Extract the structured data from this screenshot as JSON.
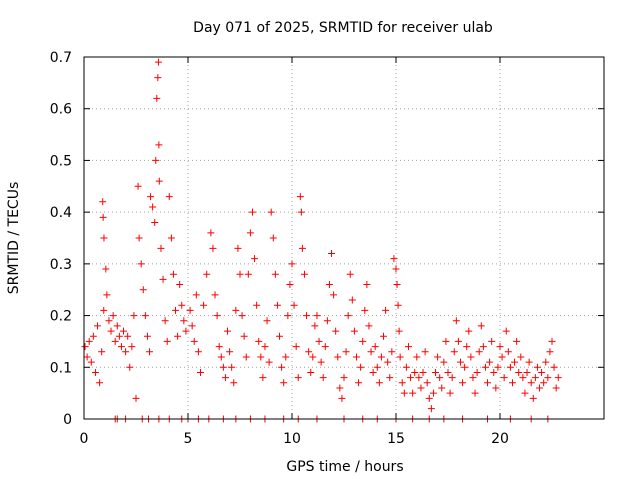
{
  "chart_data": {
    "type": "scatter",
    "title": "Day 071 of 2025, SRMTID for receiver ulab",
    "xlabel": "GPS time / hours",
    "ylabel": "SRMTID / TECUs",
    "xlim": [
      0,
      25
    ],
    "ylim": [
      0,
      0.7
    ],
    "x_ticks": [
      0,
      5,
      10,
      15,
      20
    ],
    "x_tick_labels": [
      "0",
      "5",
      "10",
      "15",
      "20"
    ],
    "y_ticks": [
      0,
      0.1,
      0.2,
      0.3,
      0.4,
      0.5,
      0.6,
      0.7
    ],
    "y_tick_labels": [
      "0",
      "0.1",
      "0.2",
      "0.3",
      "0.4",
      "0.5",
      "0.6",
      "0.7"
    ],
    "grid": true,
    "marker": "+",
    "series": [
      {
        "name": "SRMTID",
        "color": "#ff0000",
        "points": [
          [
            0.05,
            0.14
          ],
          [
            0.15,
            0.12
          ],
          [
            0.25,
            0.15
          ],
          [
            0.35,
            0.11
          ],
          [
            0.45,
            0.16
          ],
          [
            0.55,
            0.09
          ],
          [
            0.65,
            0.18
          ],
          [
            0.75,
            0.07
          ],
          [
            0.85,
            0.13
          ],
          [
            0.95,
            0.21
          ],
          [
            0.9,
            0.42
          ],
          [
            0.92,
            0.39
          ],
          [
            0.96,
            0.35
          ],
          [
            1.05,
            0.29
          ],
          [
            1.1,
            0.24
          ],
          [
            1.2,
            0.19
          ],
          [
            1.3,
            0.17
          ],
          [
            1.4,
            0.2
          ],
          [
            1.5,
            0.15
          ],
          [
            1.6,
            0.18
          ],
          [
            1.7,
            0.16
          ],
          [
            1.8,
            0.14
          ],
          [
            1.9,
            0.17
          ],
          [
            2.0,
            0.13
          ],
          [
            2.1,
            0.16
          ],
          [
            2.2,
            0.1
          ],
          [
            2.3,
            0.14
          ],
          [
            2.4,
            0.2
          ],
          [
            2.5,
            0.04
          ],
          [
            2.6,
            0.45
          ],
          [
            2.65,
            0.35
          ],
          [
            2.75,
            0.3
          ],
          [
            2.85,
            0.25
          ],
          [
            2.95,
            0.2
          ],
          [
            3.05,
            0.16
          ],
          [
            3.15,
            0.13
          ],
          [
            3.2,
            0.43
          ],
          [
            3.3,
            0.41
          ],
          [
            3.4,
            0.38
          ],
          [
            3.45,
            0.5
          ],
          [
            3.5,
            0.62
          ],
          [
            3.55,
            0.66
          ],
          [
            3.58,
            0.69
          ],
          [
            3.6,
            0.53
          ],
          [
            3.62,
            0.46
          ],
          [
            3.7,
            0.33
          ],
          [
            3.8,
            0.27
          ],
          [
            3.9,
            0.19
          ],
          [
            4.0,
            0.15
          ],
          [
            4.1,
            0.43
          ],
          [
            4.2,
            0.35
          ],
          [
            4.3,
            0.28
          ],
          [
            4.4,
            0.21
          ],
          [
            4.5,
            0.16
          ],
          [
            4.6,
            0.26
          ],
          [
            4.7,
            0.22
          ],
          [
            4.8,
            0.19
          ],
          [
            4.9,
            0.17
          ],
          [
            5.1,
            0.21
          ],
          [
            5.2,
            0.18
          ],
          [
            5.3,
            0.15
          ],
          [
            5.4,
            0.24
          ],
          [
            5.5,
            0.13
          ],
          [
            5.6,
            0.09
          ],
          [
            5.75,
            0.22
          ],
          [
            5.9,
            0.28
          ],
          [
            6.1,
            0.36
          ],
          [
            6.2,
            0.33
          ],
          [
            6.3,
            0.24
          ],
          [
            6.4,
            0.2
          ],
          [
            6.5,
            0.14
          ],
          [
            6.6,
            0.12
          ],
          [
            6.7,
            0.1
          ],
          [
            6.8,
            0.08
          ],
          [
            6.9,
            0.17
          ],
          [
            7.0,
            0.13
          ],
          [
            7.1,
            0.1
          ],
          [
            7.2,
            0.07
          ],
          [
            7.3,
            0.21
          ],
          [
            7.4,
            0.33
          ],
          [
            7.5,
            0.28
          ],
          [
            7.6,
            0.2
          ],
          [
            7.7,
            0.16
          ],
          [
            7.8,
            0.12
          ],
          [
            7.9,
            0.28
          ],
          [
            8.0,
            0.36
          ],
          [
            8.1,
            0.4
          ],
          [
            8.2,
            0.31
          ],
          [
            8.3,
            0.22
          ],
          [
            8.4,
            0.15
          ],
          [
            8.5,
            0.12
          ],
          [
            8.6,
            0.08
          ],
          [
            8.7,
            0.14
          ],
          [
            8.8,
            0.19
          ],
          [
            8.9,
            0.11
          ],
          [
            9.0,
            0.4
          ],
          [
            9.1,
            0.35
          ],
          [
            9.2,
            0.28
          ],
          [
            9.3,
            0.22
          ],
          [
            9.4,
            0.16
          ],
          [
            9.5,
            0.1
          ],
          [
            9.6,
            0.07
          ],
          [
            9.7,
            0.12
          ],
          [
            9.8,
            0.2
          ],
          [
            9.9,
            0.26
          ],
          [
            10.0,
            0.3
          ],
          [
            10.1,
            0.22
          ],
          [
            10.2,
            0.14
          ],
          [
            10.3,
            0.08
          ],
          [
            10.4,
            0.43
          ],
          [
            10.45,
            0.4
          ],
          [
            10.5,
            0.33
          ],
          [
            10.6,
            0.28
          ],
          [
            10.7,
            0.2
          ],
          [
            10.8,
            0.13
          ],
          [
            10.9,
            0.09
          ],
          [
            11.0,
            0.12
          ],
          [
            11.1,
            0.18
          ],
          [
            11.2,
            0.2
          ],
          [
            11.3,
            0.15
          ],
          [
            11.4,
            0.11
          ],
          [
            11.5,
            0.08
          ],
          [
            11.6,
            0.14
          ],
          [
            11.7,
            0.19
          ],
          [
            11.8,
            0.26
          ],
          [
            11.9,
            0.32
          ],
          [
            12.0,
            0.24
          ],
          [
            12.1,
            0.17
          ],
          [
            12.2,
            0.12
          ],
          [
            12.3,
            0.06
          ],
          [
            12.4,
            0.04
          ],
          [
            12.5,
            0.08
          ],
          [
            12.6,
            0.13
          ],
          [
            12.7,
            0.2
          ],
          [
            12.8,
            0.28
          ],
          [
            12.9,
            0.23
          ],
          [
            13.0,
            0.17
          ],
          [
            13.1,
            0.12
          ],
          [
            13.2,
            0.07
          ],
          [
            13.3,
            0.1
          ],
          [
            13.4,
            0.15
          ],
          [
            13.5,
            0.21
          ],
          [
            13.6,
            0.26
          ],
          [
            13.7,
            0.18
          ],
          [
            13.8,
            0.13
          ],
          [
            13.9,
            0.09
          ],
          [
            14.0,
            0.14
          ],
          [
            14.1,
            0.1
          ],
          [
            14.2,
            0.07
          ],
          [
            14.3,
            0.12
          ],
          [
            14.4,
            0.16
          ],
          [
            14.5,
            0.21
          ],
          [
            14.6,
            0.11
          ],
          [
            14.7,
            0.08
          ],
          [
            14.8,
            0.13
          ],
          [
            14.9,
            0.31
          ],
          [
            15.0,
            0.29
          ],
          [
            15.05,
            0.26
          ],
          [
            15.1,
            0.22
          ],
          [
            15.15,
            0.17
          ],
          [
            15.2,
            0.12
          ],
          [
            15.3,
            0.07
          ],
          [
            15.4,
            0.05
          ],
          [
            15.5,
            0.1
          ],
          [
            15.6,
            0.14
          ],
          [
            15.7,
            0.08
          ],
          [
            15.8,
            0.05
          ],
          [
            15.9,
            0.09
          ],
          [
            16.0,
            0.12
          ],
          [
            16.1,
            0.08
          ],
          [
            16.2,
            0.06
          ],
          [
            16.3,
            0.09
          ],
          [
            16.4,
            0.13
          ],
          [
            16.5,
            0.07
          ],
          [
            16.6,
            0.04
          ],
          [
            16.7,
            0.02
          ],
          [
            16.8,
            0.05
          ],
          [
            16.9,
            0.09
          ],
          [
            17.0,
            0.12
          ],
          [
            17.1,
            0.08
          ],
          [
            17.2,
            0.06
          ],
          [
            17.3,
            0.11
          ],
          [
            17.4,
            0.15
          ],
          [
            17.5,
            0.09
          ],
          [
            17.6,
            0.05
          ],
          [
            17.7,
            0.08
          ],
          [
            17.8,
            0.13
          ],
          [
            17.9,
            0.19
          ],
          [
            18.0,
            0.15
          ],
          [
            18.1,
            0.11
          ],
          [
            18.2,
            0.07
          ],
          [
            18.3,
            0.1
          ],
          [
            18.4,
            0.14
          ],
          [
            18.5,
            0.17
          ],
          [
            18.6,
            0.12
          ],
          [
            18.7,
            0.08
          ],
          [
            18.8,
            0.05
          ],
          [
            18.9,
            0.09
          ],
          [
            19.0,
            0.13
          ],
          [
            19.1,
            0.18
          ],
          [
            19.2,
            0.14
          ],
          [
            19.3,
            0.1
          ],
          [
            19.4,
            0.07
          ],
          [
            19.5,
            0.11
          ],
          [
            19.6,
            0.15
          ],
          [
            19.7,
            0.09
          ],
          [
            19.8,
            0.06
          ],
          [
            19.9,
            0.1
          ],
          [
            20.0,
            0.14
          ],
          [
            20.1,
            0.12
          ],
          [
            20.2,
            0.08
          ],
          [
            20.3,
            0.17
          ],
          [
            20.4,
            0.13
          ],
          [
            20.5,
            0.1
          ],
          [
            20.6,
            0.07
          ],
          [
            20.7,
            0.11
          ],
          [
            20.8,
            0.15
          ],
          [
            20.9,
            0.09
          ],
          [
            21.0,
            0.12
          ],
          [
            21.1,
            0.08
          ],
          [
            21.2,
            0.05
          ],
          [
            21.3,
            0.09
          ],
          [
            21.4,
            0.11
          ],
          [
            21.5,
            0.07
          ],
          [
            21.6,
            0.04
          ],
          [
            21.7,
            0.08
          ],
          [
            21.8,
            0.1
          ],
          [
            21.9,
            0.06
          ],
          [
            22.0,
            0.09
          ],
          [
            22.1,
            0.07
          ],
          [
            22.2,
            0.11
          ],
          [
            22.3,
            0.08
          ],
          [
            22.4,
            0.13
          ],
          [
            22.5,
            0.15
          ],
          [
            22.6,
            0.1
          ],
          [
            22.7,
            0.06
          ],
          [
            22.8,
            0.08
          ],
          [
            1.5,
            0.0
          ],
          [
            1.6,
            0.0
          ],
          [
            2.0,
            0.0
          ],
          [
            2.8,
            0.0
          ],
          [
            3.1,
            0.0
          ],
          [
            3.6,
            0.0
          ],
          [
            4.1,
            0.0
          ],
          [
            4.7,
            0.0
          ],
          [
            5.0,
            0.0
          ],
          [
            5.5,
            0.0
          ],
          [
            6.0,
            0.0
          ],
          [
            6.7,
            0.0
          ],
          [
            7.3,
            0.0
          ],
          [
            8.0,
            0.0
          ],
          [
            8.7,
            0.0
          ],
          [
            9.6,
            0.0
          ],
          [
            10.3,
            0.0
          ],
          [
            11.2,
            0.0
          ],
          [
            12.5,
            0.0
          ],
          [
            13.4,
            0.0
          ],
          [
            14.1,
            0.0
          ],
          [
            15.0,
            0.0
          ],
          [
            15.8,
            0.0
          ],
          [
            16.6,
            0.0
          ],
          [
            17.3,
            0.0
          ],
          [
            18.2,
            0.0
          ],
          [
            19.4,
            0.0
          ],
          [
            20.5,
            0.0
          ],
          [
            21.5,
            0.0
          ],
          [
            22.3,
            0.0
          ]
        ]
      }
    ]
  }
}
